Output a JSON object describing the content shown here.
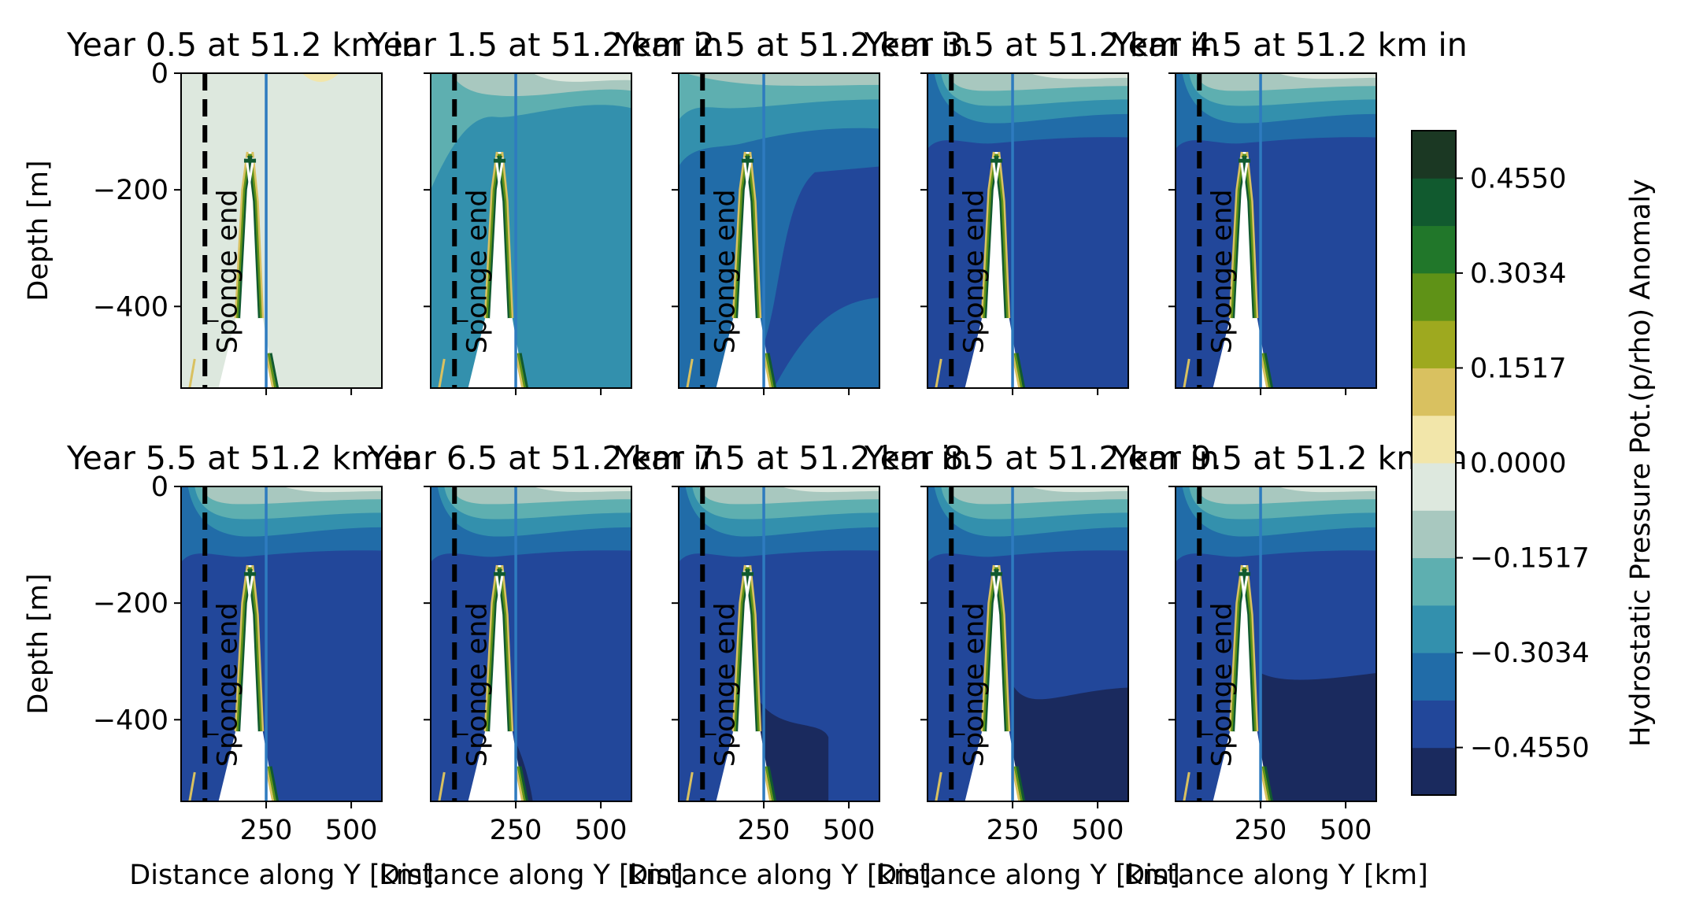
{
  "chart_data": {
    "type": "heatmap",
    "panels": [
      {
        "title": "Year 0.5 at 51.2 km in",
        "year": 0.5
      },
      {
        "title": "Year 1.5 at 51.2 km in",
        "year": 1.5
      },
      {
        "title": "Year 2.5 at 51.2 km in",
        "year": 2.5
      },
      {
        "title": "Year 3.5 at 51.2 km in",
        "year": 3.5
      },
      {
        "title": "Year 4.5 at 51.2 km in",
        "year": 4.5
      },
      {
        "title": "Year 5.5 at 51.2 km in",
        "year": 5.5
      },
      {
        "title": "Year 6.5 at 51.2 km in",
        "year": 6.5
      },
      {
        "title": "Year 7.5 at 51.2 km in",
        "year": 7.5
      },
      {
        "title": "Year 8.5 at 51.2 km in",
        "year": 8.5
      },
      {
        "title": "Year 9.5 at 51.2 km in",
        "year": 9.5
      }
    ],
    "xlabel": "Distance along Y [km]",
    "ylabel": "Depth [m]",
    "xticks": [
      250,
      500
    ],
    "yticks": [
      0,
      -200,
      -400
    ],
    "xlim": [
      0,
      590
    ],
    "ylim": [
      -540,
      0
    ],
    "sponge_label": "Sponge end",
    "sponge_x": 70,
    "section_x": 250,
    "colorbar": {
      "label": "Hydrostatic Pressure Pot.(p/rho) Anomaly",
      "ticks": [
        "0.4550",
        "0.3034",
        "0.1517",
        "0.0000",
        "−0.1517",
        "−0.3034",
        "−0.4550"
      ],
      "range": [
        -0.531,
        0.531
      ],
      "colors": [
        "#1a2a5e",
        "#22479a",
        "#216ca8",
        "#3390ad",
        "#5eafb0",
        "#a8c8bf",
        "#dde8de",
        "#f2e6aa",
        "#d9c160",
        "#9ea91f",
        "#5f9217",
        "#21772a",
        "#115a2f",
        "#1b3823"
      ]
    },
    "colors": {
      "sponge_line": "#000000",
      "section_line": "#2e7bbf",
      "bathymetry": "#ffffff"
    }
  }
}
